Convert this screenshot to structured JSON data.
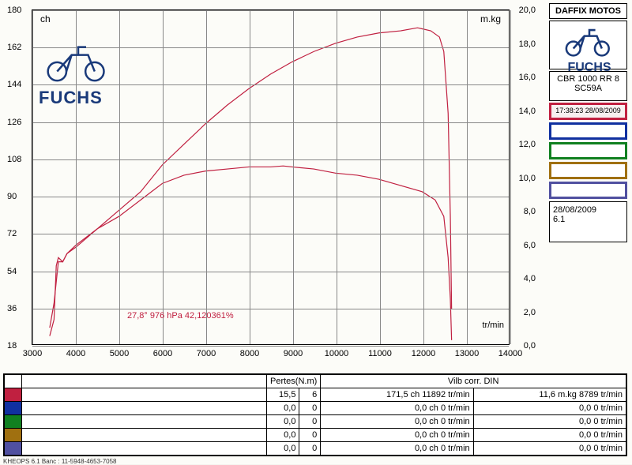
{
  "chart": {
    "type": "line",
    "background_color": "#fcfcf8",
    "grid_color": "#999999",
    "left_axis": {
      "unit": "ch",
      "min": 18,
      "max": 180,
      "step": 18,
      "ticks": [
        18,
        36,
        54,
        72,
        90,
        108,
        126,
        144,
        162,
        180
      ]
    },
    "right_axis": {
      "unit": "m.kg",
      "min": 0,
      "max": 20,
      "step": 2,
      "ticks": [
        "0,0",
        "2,0",
        "4,0",
        "6,0",
        "8,0",
        "10,0",
        "12,0",
        "14,0",
        "16,0",
        "18,0",
        "20,0"
      ]
    },
    "x_axis": {
      "unit": "tr/min",
      "min": 3000,
      "max": 14000,
      "step": 1000,
      "ticks": [
        3000,
        4000,
        5000,
        6000,
        7000,
        8000,
        9000,
        10000,
        11000,
        12000,
        13000,
        14000
      ]
    },
    "series_power": {
      "color": "#c02040",
      "width": 1.2,
      "points": [
        [
          3400,
          22
        ],
        [
          3500,
          30
        ],
        [
          3550,
          56
        ],
        [
          3600,
          60
        ],
        [
          3700,
          58
        ],
        [
          3800,
          62
        ],
        [
          4000,
          65
        ],
        [
          4500,
          74
        ],
        [
          5000,
          83
        ],
        [
          5500,
          92
        ],
        [
          6000,
          105
        ],
        [
          6500,
          115
        ],
        [
          7000,
          125
        ],
        [
          7500,
          134
        ],
        [
          8000,
          142
        ],
        [
          8500,
          149
        ],
        [
          9000,
          155
        ],
        [
          9500,
          160
        ],
        [
          10000,
          164
        ],
        [
          10500,
          167
        ],
        [
          11000,
          169
        ],
        [
          11500,
          170
        ],
        [
          11892,
          171.5
        ],
        [
          12000,
          171
        ],
        [
          12200,
          170
        ],
        [
          12400,
          167
        ],
        [
          12500,
          160
        ],
        [
          12600,
          130
        ],
        [
          12650,
          80
        ],
        [
          12680,
          35
        ]
      ]
    },
    "series_torque": {
      "color": "#c02040",
      "width": 1.2,
      "points": [
        [
          3400,
          26
        ],
        [
          3500,
          38
        ],
        [
          3600,
          58
        ],
        [
          3700,
          58
        ],
        [
          3800,
          62
        ],
        [
          4000,
          66
        ],
        [
          4500,
          74
        ],
        [
          5000,
          80
        ],
        [
          5500,
          88
        ],
        [
          6000,
          96
        ],
        [
          6500,
          100
        ],
        [
          7000,
          102
        ],
        [
          7500,
          103
        ],
        [
          8000,
          104
        ],
        [
          8500,
          104
        ],
        [
          8789,
          104.5
        ],
        [
          9000,
          104
        ],
        [
          9500,
          103
        ],
        [
          10000,
          101
        ],
        [
          10500,
          100
        ],
        [
          11000,
          98
        ],
        [
          11500,
          95
        ],
        [
          12000,
          92
        ],
        [
          12300,
          88
        ],
        [
          12500,
          80
        ],
        [
          12600,
          60
        ],
        [
          12650,
          40
        ],
        [
          12680,
          20
        ]
      ]
    },
    "env_text": "27,8°  976 hPa  42,120361%"
  },
  "logo_text": "FUCHS",
  "side": {
    "title": "DAFFIX  MOTOS",
    "model_line1": "CBR 1000 RR 8",
    "model_line2": "SC59A",
    "run_info": "17:38:23  28/08/2009",
    "date": "28/08/2009",
    "version": "6.1",
    "swatch_colors": [
      "#c02040",
      "#1030a0",
      "#108020",
      "#a07010",
      "#5050a0"
    ]
  },
  "table": {
    "header1": "Pertes(N.m)",
    "header2": "Vilb corr. DIN",
    "row_colors": [
      "#c02040",
      "#1030a0",
      "#108020",
      "#a07010",
      "#5050a0"
    ],
    "rows": [
      {
        "pertes_a": "15,5",
        "pertes_b": "6",
        "col1": "171,5 ch 11892 tr/min",
        "col2": "11,6 m.kg 8789 tr/min"
      },
      {
        "pertes_a": "0,0",
        "pertes_b": "0",
        "col1": "0,0 ch 0 tr/min",
        "col2": "0,0 0 tr/min"
      },
      {
        "pertes_a": "0,0",
        "pertes_b": "0",
        "col1": "0,0 ch 0 tr/min",
        "col2": "0,0 0 tr/min"
      },
      {
        "pertes_a": "0,0",
        "pertes_b": "0",
        "col1": "0,0 ch 0 tr/min",
        "col2": "0,0 0 tr/min"
      },
      {
        "pertes_a": "0,0",
        "pertes_b": "0",
        "col1": "0,0 ch 0 tr/min",
        "col2": "0,0 0 tr/min"
      }
    ]
  },
  "footer": "KHEOPS 6.1  Banc : 11-5948-4653-7058"
}
